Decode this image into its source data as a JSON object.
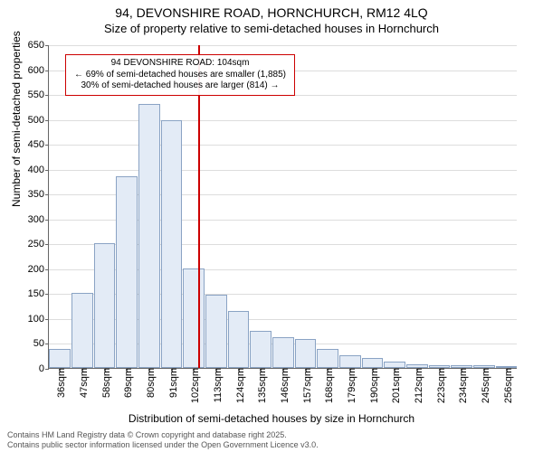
{
  "title": {
    "line1": "94, DEVONSHIRE ROAD, HORNCHURCH, RM12 4LQ",
    "line2": "Size of property relative to semi-detached houses in Hornchurch"
  },
  "chart": {
    "type": "histogram",
    "y_axis_label": "Number of semi-detached properties",
    "x_axis_label": "Distribution of semi-detached houses by size in Hornchurch",
    "ylim": [
      0,
      650
    ],
    "ytick_step": 50,
    "bar_fill": "#e3ebf6",
    "bar_stroke": "#8aa3c4",
    "grid_color": "#dddddd",
    "background_color": "#ffffff",
    "x_labels": [
      "36sqm",
      "47sqm",
      "58sqm",
      "69sqm",
      "80sqm",
      "91sqm",
      "102sqm",
      "113sqm",
      "124sqm",
      "135sqm",
      "146sqm",
      "157sqm",
      "168sqm",
      "179sqm",
      "190sqm",
      "201sqm",
      "212sqm",
      "223sqm",
      "234sqm",
      "245sqm",
      "256sqm"
    ],
    "values": [
      38,
      150,
      250,
      385,
      530,
      498,
      200,
      148,
      115,
      75,
      62,
      58,
      38,
      25,
      20,
      12,
      8,
      6,
      5,
      5,
      3
    ],
    "marker": {
      "color": "#cc0000",
      "position_label": "104sqm",
      "value": 104
    },
    "annotation": {
      "line1": "94 DEVONSHIRE ROAD: 104sqm",
      "line2": "← 69% of semi-detached houses are smaller (1,885)",
      "line3": "30% of semi-detached houses are larger (814) →",
      "border_color": "#cc0000"
    }
  },
  "footer": {
    "line1": "Contains HM Land Registry data © Crown copyright and database right 2025.",
    "line2": "Contains public sector information licensed under the Open Government Licence v3.0."
  },
  "typography": {
    "title_fontsize": 14,
    "subtitle_fontsize": 13,
    "axis_label_fontsize": 12,
    "tick_fontsize": 11,
    "annotation_fontsize": 10,
    "footer_fontsize": 9
  }
}
